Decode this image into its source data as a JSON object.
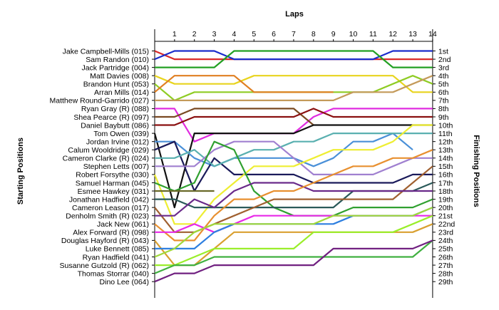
{
  "chart_data": {
    "type": "line",
    "title": "Laps",
    "ylabel_left": "Starting Positions",
    "ylabel_right": "Finishing Positions",
    "x": [
      0,
      1,
      2,
      3,
      4,
      5,
      6,
      7,
      8,
      9,
      10,
      11,
      12,
      13,
      14
    ],
    "x_tick_labels": [
      "1",
      "2",
      "3",
      "4",
      "5",
      "6",
      "7",
      "8",
      "9",
      "10",
      "11",
      "12",
      "13",
      "14"
    ],
    "y_range": [
      1,
      29
    ],
    "y_inverted": true,
    "grid": false,
    "finishing_labels": [
      "1st",
      "2nd",
      "3rd",
      "4th",
      "5th",
      "6th",
      "7th",
      "8th",
      "9th",
      "10th",
      "11th",
      "12th",
      "13th",
      "14th",
      "15th",
      "16th",
      "17th",
      "18th",
      "19th",
      "20th",
      "21st",
      "22nd",
      "23rd",
      "24th",
      "25th",
      "26th",
      "27th",
      "28th",
      "29th"
    ],
    "series": [
      {
        "name": "Jake Campbell-Mills (015)",
        "color": "#d92a2a",
        "values": [
          1,
          2,
          2,
          2,
          2,
          2,
          2,
          2,
          2,
          2,
          2,
          2,
          2,
          2,
          2
        ]
      },
      {
        "name": "Sam Randon (010)",
        "color": "#1a2ccc",
        "values": [
          2,
          1,
          1,
          1,
          2,
          2,
          2,
          2,
          2,
          2,
          2,
          2,
          1,
          1,
          1
        ]
      },
      {
        "name": "Jack Partridge (004)",
        "color": "#23a023",
        "values": [
          3,
          3,
          3,
          3,
          1,
          1,
          1,
          1,
          1,
          1,
          1,
          1,
          3,
          3,
          3
        ]
      },
      {
        "name": "Matt Davies (008)",
        "color": "#e8d41e",
        "values": [
          4,
          5,
          5,
          5,
          5,
          4,
          4,
          4,
          4,
          4,
          4,
          4,
          4,
          6,
          6
        ]
      },
      {
        "name": "Brandon Hunt (053)",
        "color": "#8fcc24",
        "values": [
          5,
          7,
          6,
          6,
          6,
          6,
          6,
          6,
          6,
          6,
          6,
          6,
          5,
          4,
          5
        ]
      },
      {
        "name": "Arran Mills (014)",
        "color": "#e07f22",
        "values": [
          6,
          4,
          4,
          4,
          4,
          6,
          6,
          6,
          6,
          6,
          null,
          null,
          null,
          null,
          null
        ]
      },
      {
        "name": "Matthew Round-Garrido (027)",
        "color": "#c49a5a",
        "values": [
          7,
          7,
          7,
          7,
          7,
          7,
          7,
          7,
          7,
          7,
          6,
          6,
          6,
          5,
          4
        ]
      },
      {
        "name": "Ryan Gray (R) (088)",
        "color": "#e02ce0",
        "values": [
          8,
          8,
          12,
          11,
          11,
          11,
          11,
          11,
          9,
          8,
          8,
          8,
          8,
          8,
          8
        ]
      },
      {
        "name": "Shea Pearce (R) (097)",
        "color": "#7a4a22",
        "values": [
          9,
          9,
          8,
          8,
          8,
          8,
          8,
          8,
          10,
          null,
          null,
          null,
          null,
          null,
          null
        ]
      },
      {
        "name": "Daniel Baybutt (086)",
        "color": "#8a1010",
        "values": [
          10,
          10,
          9,
          9,
          9,
          9,
          9,
          9,
          8,
          9,
          9,
          9,
          9,
          9,
          9
        ]
      },
      {
        "name": "Tom Owen (039)",
        "color": "#111111",
        "values": [
          11,
          20,
          11,
          11,
          11,
          11,
          11,
          11,
          10,
          10,
          10,
          10,
          10,
          10,
          10
        ]
      },
      {
        "name": "Jordan Irvine (012)",
        "color": "#4a90d8",
        "values": [
          12,
          12,
          14,
          15,
          14,
          14,
          14,
          14,
          15,
          14,
          12,
          12,
          11,
          13,
          null
        ]
      },
      {
        "name": "Calum Wooldridge (029)",
        "color": "#1a1a5a",
        "values": [
          13,
          12,
          18,
          14,
          16,
          16,
          16,
          16,
          17,
          17,
          17,
          17,
          17,
          16,
          16
        ]
      },
      {
        "name": "Cameron Clarke (R) (024)",
        "color": "#5ab0b0",
        "values": [
          14,
          14,
          13,
          15,
          14,
          13,
          13,
          12,
          12,
          11,
          11,
          11,
          11,
          11,
          11
        ]
      },
      {
        "name": "Stephen Letts (007)",
        "color": "#a080d0",
        "values": [
          15,
          15,
          15,
          13,
          12,
          12,
          12,
          14,
          16,
          16,
          16,
          16,
          15,
          14,
          14
        ]
      },
      {
        "name": "Robert Forsythe (030)",
        "color": "#eeee33",
        "values": [
          16,
          22,
          22,
          19,
          17,
          15,
          15,
          15,
          14,
          13,
          13,
          13,
          12,
          10,
          10
        ]
      },
      {
        "name": "Samuel Harman (045)",
        "color": "#30a030",
        "values": [
          17,
          18,
          17,
          12,
          13,
          18,
          20,
          21,
          21,
          21,
          20,
          20,
          20,
          20,
          19
        ]
      },
      {
        "name": "Esmee Hawkey (031)",
        "color": "#6a6a2a",
        "values": [
          18,
          18,
          18,
          18,
          null,
          null,
          null,
          null,
          null,
          null,
          null,
          null,
          null,
          null,
          null
        ]
      },
      {
        "name": "Jonathan Hadfield (042)",
        "color": "#2a5a5a",
        "values": [
          19,
          19,
          20,
          20,
          20,
          20,
          20,
          20,
          20,
          20,
          18,
          18,
          18,
          18,
          17
        ]
      },
      {
        "name": "Cameron Leason (017)",
        "color": "#a06030",
        "values": [
          20,
          23,
          23,
          22,
          21,
          20,
          19,
          19,
          19,
          19,
          19,
          19,
          19,
          17,
          15
        ]
      },
      {
        "name": "Denholm Smith (R) (023)",
        "color": "#6a2a8a",
        "values": [
          21,
          21,
          19,
          20,
          18,
          17,
          17,
          17,
          18,
          18,
          18,
          18,
          18,
          18,
          18
        ]
      },
      {
        "name": "Jack New (061)",
        "color": "#e89030",
        "values": [
          22,
          24,
          24,
          21,
          19,
          19,
          18,
          18,
          17,
          16,
          15,
          15,
          14,
          14,
          13
        ]
      },
      {
        "name": "Alex Forward (R) (098)",
        "color": "#e82ae8",
        "values": [
          23,
          23,
          22,
          23,
          22,
          21,
          21,
          21,
          21,
          21,
          21,
          21,
          21,
          21,
          21
        ]
      },
      {
        "name": "Douglas Hayford (R) (043)",
        "color": "#d9a030",
        "values": [
          24,
          27,
          27,
          25,
          23,
          23,
          23,
          23,
          23,
          23,
          23,
          23,
          23,
          23,
          22
        ]
      },
      {
        "name": "Luke Bennett (085)",
        "color": "#2e7fe0",
        "values": [
          25,
          25,
          25,
          23,
          22,
          22,
          22,
          22,
          22,
          22,
          21,
          21,
          21,
          21,
          20
        ]
      },
      {
        "name": "Ryan Hadfield (041)",
        "color": "#a0d83a",
        "values": [
          26,
          25,
          23,
          22,
          22,
          22,
          22,
          22,
          22,
          21,
          21,
          21,
          21,
          21,
          20
        ]
      },
      {
        "name": "Susanne Gutzold (R) (062)",
        "color": "#9aee2a",
        "values": [
          27,
          27,
          26,
          25,
          25,
          25,
          25,
          25,
          23,
          23,
          23,
          23,
          23,
          22,
          21
        ]
      },
      {
        "name": "Thomas Storrar (040)",
        "color": "#40b040",
        "values": [
          28,
          27,
          27,
          26,
          26,
          26,
          26,
          26,
          26,
          26,
          26,
          26,
          26,
          26,
          24
        ]
      },
      {
        "name": "Dino Lee (064)",
        "color": "#702080",
        "values": [
          29,
          28,
          28,
          27,
          27,
          27,
          27,
          27,
          27,
          25,
          25,
          25,
          25,
          25,
          24
        ]
      }
    ]
  }
}
